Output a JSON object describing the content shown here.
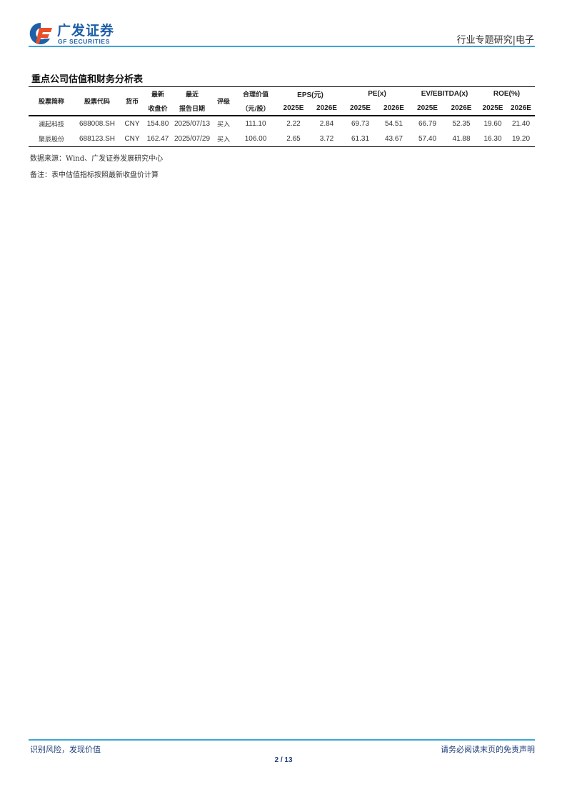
{
  "header": {
    "logo_cn": "广发证券",
    "logo_en": "GF SECURITIES",
    "section": "行业专题研究|电子"
  },
  "table": {
    "title": "重点公司估值和财务分析表",
    "headers": {
      "name": "股票简称",
      "code": "股票代码",
      "currency": "货币",
      "price_1": "最新",
      "price_2": "收盘价",
      "date_1": "最近",
      "date_2": "报告日期",
      "rating": "评级",
      "fair_1": "合理价值",
      "fair_2": "（元/股）",
      "eps": "EPS(元)",
      "pe": "PE(x)",
      "ev": "EV/EBITDA(x)",
      "roe": "ROE(%)",
      "y1": "2025E",
      "y2": "2026E"
    },
    "rows": [
      {
        "name": "澜起科技",
        "code": "688008.SH",
        "currency": "CNY",
        "price": "154.80",
        "date": "2025/07/13",
        "rating": "买入",
        "fair": "111.10",
        "eps25": "2.22",
        "eps26": "2.84",
        "pe25": "69.73",
        "pe26": "54.51",
        "ev25": "66.79",
        "ev26": "52.35",
        "roe25": "19.60",
        "roe26": "21.40"
      },
      {
        "name": "聚辰股份",
        "code": "688123.SH",
        "currency": "CNY",
        "price": "162.47",
        "date": "2025/07/29",
        "rating": "买入",
        "fair": "106.00",
        "eps25": "2.65",
        "eps26": "3.72",
        "pe25": "61.31",
        "pe26": "43.67",
        "ev25": "57.40",
        "ev26": "41.88",
        "roe25": "16.30",
        "roe26": "19.20"
      }
    ],
    "source": "数据来源：Wind、广发证券发展研究中心",
    "note": "备注：表中估值指标按照最新收盘价计算"
  },
  "footer": {
    "left": "识别风险，发现价值",
    "right": "请务必阅读末页的免责声明",
    "page": "2 / 13"
  },
  "colors": {
    "brand": "#1f5fa8",
    "accent_line": "#3aa6d6",
    "logo_orange": "#e8502a"
  }
}
